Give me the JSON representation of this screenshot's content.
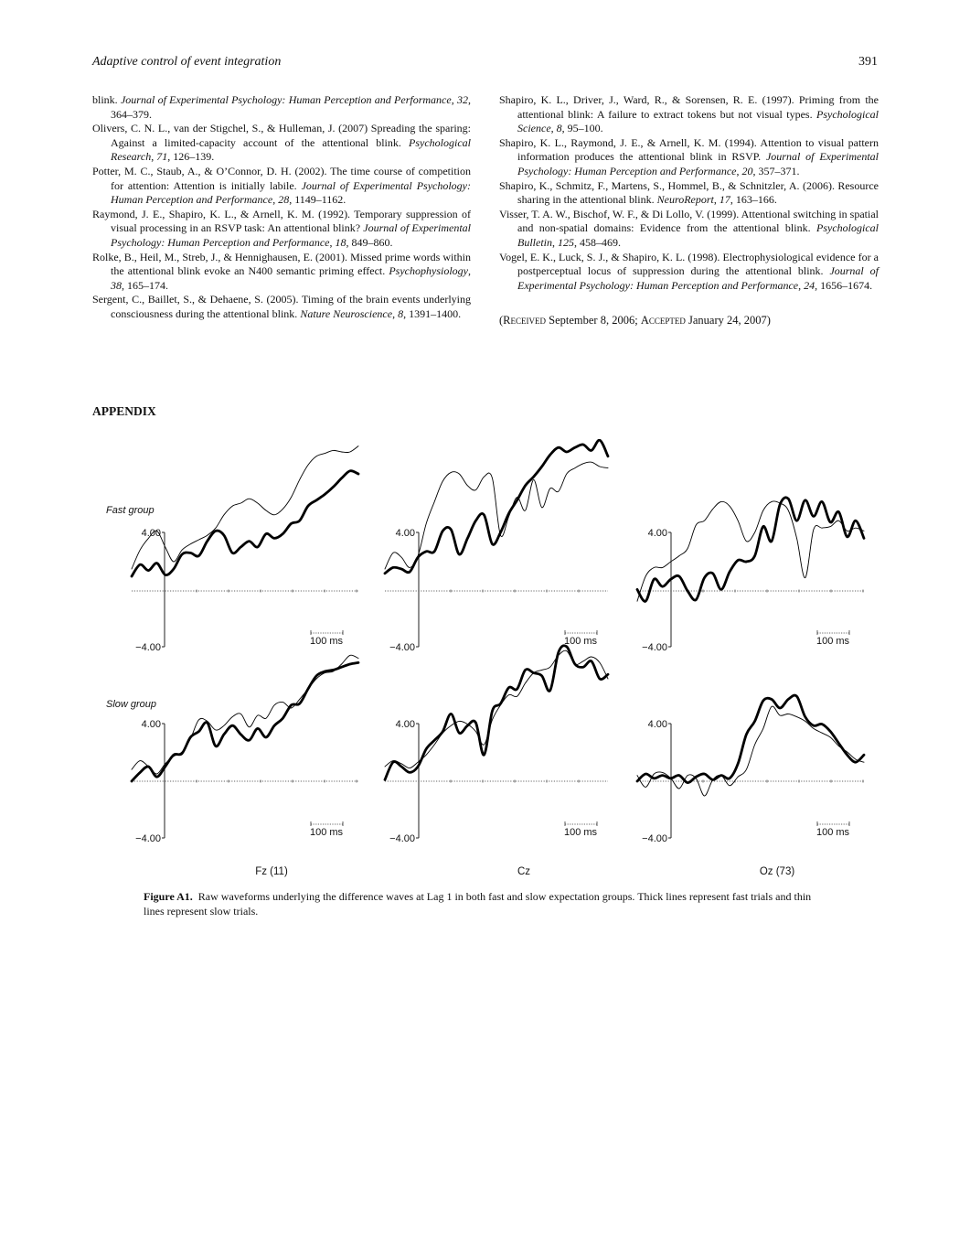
{
  "header": {
    "running_title": "Adaptive control of event integration",
    "page_number": "391"
  },
  "references_left": [
    [
      {
        "t": "blink. "
      },
      {
        "t": "Journal of Experimental Psychology: Human Perception and Performance",
        "i": true
      },
      {
        "t": ", "
      },
      {
        "t": "32",
        "i": true
      },
      {
        "t": ", 364–379."
      }
    ],
    [
      {
        "t": "Olivers, C. N. L., van der Stigchel, S., & Hulleman, J. (2007) Spreading the sparing: Against a limited-capacity account of the attentional blink. "
      },
      {
        "t": "Psychological Research",
        "i": true
      },
      {
        "t": ", "
      },
      {
        "t": "71",
        "i": true
      },
      {
        "t": ", 126–139."
      }
    ],
    [
      {
        "t": "Potter, M. C., Staub, A., & O’Connor, D. H. (2002). The time course of competition for attention: Attention is initially labile. "
      },
      {
        "t": "Journal of Experimental Psychology: Human Perception and Performance",
        "i": true
      },
      {
        "t": ", "
      },
      {
        "t": "28",
        "i": true
      },
      {
        "t": ", 1149–1162."
      }
    ],
    [
      {
        "t": "Raymond, J. E., Shapiro, K. L., & Arnell, K. M. (1992). Temporary suppression of visual processing in an RSVP task: An attentional blink? "
      },
      {
        "t": "Journal of Experimental Psychology: Human Perception and Performance",
        "i": true
      },
      {
        "t": ", "
      },
      {
        "t": "18",
        "i": true
      },
      {
        "t": ", 849–860."
      }
    ],
    [
      {
        "t": "Rolke, B., Heil, M., Streb, J., & Hennighausen, E. (2001). Missed prime words within the attentional blink evoke an N400 semantic priming effect. "
      },
      {
        "t": "Psychophysiology",
        "i": true
      },
      {
        "t": ", "
      },
      {
        "t": "38",
        "i": true
      },
      {
        "t": ", 165–174."
      }
    ],
    [
      {
        "t": "Sergent, C., Baillet, S., & Dehaene, S. (2005). Timing of the brain events underlying consciousness during the attentional blink. "
      },
      {
        "t": "Nature Neuroscience",
        "i": true
      },
      {
        "t": ", "
      },
      {
        "t": "8",
        "i": true
      },
      {
        "t": ", 1391–1400."
      }
    ]
  ],
  "references_right": [
    [
      {
        "t": "Shapiro, K. L., Driver, J., Ward, R., & Sorensen, R. E. (1997). Priming from the attentional blink: A failure to extract tokens but not visual types. "
      },
      {
        "t": "Psychological Science",
        "i": true
      },
      {
        "t": ", "
      },
      {
        "t": "8",
        "i": true
      },
      {
        "t": ", 95–100."
      }
    ],
    [
      {
        "t": "Shapiro, K. L., Raymond, J. E., & Arnell, K. M. (1994). Attention to visual pattern information produces the attentional blink in RSVP. "
      },
      {
        "t": "Journal of Experimental Psychology: Human Perception and Performance",
        "i": true
      },
      {
        "t": ", "
      },
      {
        "t": "20",
        "i": true
      },
      {
        "t": ", 357–371."
      }
    ],
    [
      {
        "t": "Shapiro, K., Schmitz, F., Martens, S., Hommel, B., & Schnitzler, A. (2006). Resource sharing in the attentional blink. "
      },
      {
        "t": "NeuroReport",
        "i": true
      },
      {
        "t": ", "
      },
      {
        "t": "17",
        "i": true
      },
      {
        "t": ", 163–166."
      }
    ],
    [
      {
        "t": "Visser, T. A. W., Bischof, W. F., & Di Lollo, V. (1999). Attentional switching in spatial and non-spatial domains: Evidence from the attentional blink. "
      },
      {
        "t": "Psychological Bulletin",
        "i": true
      },
      {
        "t": ", "
      },
      {
        "t": "125",
        "i": true
      },
      {
        "t": ", 458–469."
      }
    ],
    [
      {
        "t": "Vogel, E. K., Luck, S. J., & Shapiro, K. L. (1998). Electrophysiological evidence for a postperceptual locus of suppression during the attentional blink. "
      },
      {
        "t": "Journal of Experimental Psychology: Human Perception and Performance",
        "i": true
      },
      {
        "t": ", "
      },
      {
        "t": "24",
        "i": true
      },
      {
        "t": ", 1656–1674."
      }
    ]
  ],
  "received": {
    "open": "(",
    "received_label": "Received",
    "received_date": " September 8, 2006; ",
    "accepted_label": "Accepted",
    "accepted_date": " January 24, 2007)"
  },
  "appendix_heading": "APPENDIX",
  "figure": {
    "group_labels": [
      "Fast group",
      "Slow group"
    ],
    "electrodes": [
      "Fz (11)",
      "Cz",
      "Oz (73)"
    ],
    "y_top_label": "4.00",
    "y_bottom_label": "−4.00",
    "scale_bar_label": "100 ms",
    "caption_label": "Figure A1.",
    "caption_text": "Raw waveforms underlying the difference waves at Lag 1 in both fast and slow expectation groups. Thick lines represent fast trials and thin lines represent slow trials."
  },
  "chart_data": {
    "type": "line",
    "xlabel": "",
    "ylabel": "",
    "ylim": [
      -4,
      4
    ],
    "series_styles": {
      "fast": "thick",
      "slow": "thin"
    },
    "panels": [
      {
        "group": "Fast group",
        "electrode": "Fz (11)",
        "fast": [
          1.0,
          1.8,
          1.4,
          1.9,
          1.1,
          1.5,
          2.5,
          2.6,
          2.4,
          3.4,
          4.1,
          3.8,
          2.6,
          3.0,
          3.4,
          3.0,
          3.9,
          3.6,
          3.9,
          4.6,
          4.8,
          5.8,
          6.2,
          6.6,
          7.1,
          7.7,
          8.2,
          8.0
        ],
        "slow": [
          1.5,
          2.8,
          3.6,
          4.1,
          3.0,
          2.0,
          2.8,
          3.2,
          3.5,
          3.8,
          4.3,
          5.2,
          5.8,
          6.0,
          6.3,
          6.0,
          5.5,
          5.2,
          5.6,
          6.4,
          7.6,
          8.6,
          9.2,
          9.4,
          9.6,
          9.5,
          9.5,
          9.9
        ]
      },
      {
        "group": "Fast group",
        "electrode": "Cz",
        "fast": [
          1.2,
          1.6,
          1.5,
          1.3,
          2.3,
          2.7,
          2.7,
          4.1,
          4.2,
          2.5,
          3.6,
          4.8,
          5.2,
          3.2,
          4.0,
          5.3,
          6.2,
          7.2,
          7.8,
          8.5,
          9.3,
          9.8,
          9.5,
          9.8,
          10.0,
          9.6,
          10.3,
          9.2
        ],
        "slow": [
          1.5,
          2.6,
          2.3,
          1.6,
          2.4,
          4.6,
          6.1,
          7.5,
          8.1,
          8.0,
          7.2,
          6.9,
          7.8,
          7.7,
          3.8,
          5.1,
          6.4,
          5.5,
          7.6,
          5.7,
          7.0,
          6.8,
          8.0,
          8.4,
          8.7,
          8.8,
          8.5,
          8.4
        ]
      },
      {
        "group": "Fast group",
        "electrode": "Oz (73)",
        "fast": [
          0.1,
          -0.7,
          0.8,
          0.3,
          0.8,
          1.0,
          0.0,
          -0.6,
          0.9,
          1.2,
          0.1,
          1.3,
          2.1,
          2.0,
          2.4,
          4.4,
          3.4,
          5.9,
          6.3,
          4.8,
          6.2,
          5.1,
          6.1,
          4.7,
          5.4,
          3.7,
          4.8,
          3.6
        ],
        "slow": [
          -0.7,
          1.0,
          1.6,
          1.6,
          2.0,
          2.4,
          2.9,
          4.5,
          4.8,
          5.6,
          6.1,
          5.8,
          4.8,
          3.4,
          4.0,
          5.5,
          6.1,
          6.0,
          5.5,
          3.6,
          0.9,
          4.2,
          4.3,
          4.4,
          4.8,
          4.1,
          4.3,
          4.1
        ]
      },
      {
        "group": "Slow group",
        "electrode": "Fz (11)",
        "fast": [
          0.0,
          0.6,
          1.0,
          0.3,
          1.0,
          1.8,
          1.9,
          3.0,
          3.4,
          4.0,
          2.4,
          3.2,
          3.8,
          3.2,
          2.8,
          3.6,
          3.0,
          3.8,
          4.3,
          5.2,
          5.3,
          6.3,
          7.2,
          7.5,
          7.6,
          7.8,
          8.0,
          8.1
        ],
        "slow": [
          0.8,
          1.4,
          1.0,
          0.5,
          1.2,
          1.7,
          2.0,
          2.9,
          4.2,
          4.1,
          3.5,
          3.8,
          4.4,
          4.6,
          3.7,
          4.5,
          4.3,
          5.2,
          5.4,
          5.0,
          5.6,
          6.3,
          7.0,
          7.4,
          7.5,
          8.0,
          8.6,
          8.4
        ]
      },
      {
        "group": "Slow group",
        "electrode": "Cz",
        "fast": [
          0.1,
          1.3,
          1.0,
          0.6,
          1.0,
          2.2,
          2.8,
          3.4,
          4.6,
          3.3,
          3.8,
          4.0,
          1.8,
          4.8,
          5.3,
          6.4,
          6.3,
          7.6,
          7.4,
          7.2,
          6.2,
          8.8,
          9.2,
          8.0,
          7.8,
          8.2,
          7.0,
          7.3
        ],
        "slow": [
          1.0,
          1.4,
          1.2,
          0.9,
          1.3,
          1.8,
          2.5,
          3.3,
          3.8,
          4.1,
          3.9,
          3.4,
          2.5,
          4.2,
          5.2,
          5.9,
          5.8,
          6.7,
          7.4,
          7.6,
          7.8,
          8.6,
          8.9,
          8.0,
          8.2,
          8.5,
          8.1,
          7.0
        ]
      },
      {
        "group": "Slow group",
        "electrode": "Oz (73)",
        "fast": [
          0.0,
          0.5,
          0.2,
          0.4,
          0.2,
          0.4,
          -0.1,
          0.3,
          0.5,
          0.1,
          0.4,
          0.2,
          1.2,
          3.2,
          4.1,
          5.5,
          5.6,
          5.0,
          5.6,
          5.8,
          4.4,
          3.8,
          3.9,
          3.4,
          2.6,
          1.8,
          1.3,
          1.8
        ],
        "slow": [
          0.4,
          -0.4,
          0.5,
          0.6,
          0.2,
          -0.5,
          0.4,
          0.2,
          -1.0,
          0.1,
          0.4,
          -0.3,
          0.3,
          0.8,
          2.5,
          3.6,
          5.1,
          4.5,
          4.6,
          4.4,
          4.1,
          3.6,
          3.3,
          3.0,
          2.4,
          2.0,
          1.5,
          1.3
        ]
      }
    ]
  }
}
